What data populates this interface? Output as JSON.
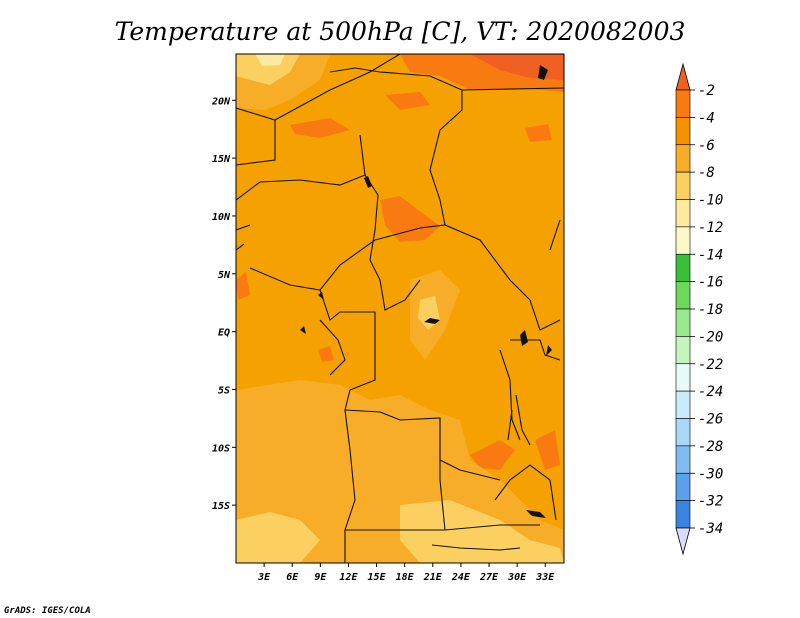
{
  "title": "Temperature at 500hPa [C], VT: 2020082003",
  "credit": "GrADS: IGES/COLA",
  "map": {
    "lon_range": [
      0,
      35
    ],
    "lat_range": [
      -20,
      24
    ],
    "lon_ticks": [
      "3E",
      "6E",
      "9E",
      "12E",
      "15E",
      "18E",
      "21E",
      "24E",
      "27E",
      "30E",
      "33E"
    ],
    "lat_ticks": [
      "20N",
      "15N",
      "10N",
      "5N",
      "EQ",
      "5S",
      "10S",
      "15S"
    ],
    "base_fill": "#f5a200"
  },
  "colorbar": {
    "labels": [
      "-2",
      "-4",
      "-6",
      "-8",
      "-10",
      "-12",
      "-14",
      "-16",
      "-18",
      "-20",
      "-22",
      "-24",
      "-26",
      "-28",
      "-30",
      "-32",
      "-34"
    ],
    "top_color": "#f06020",
    "bottom_color": "#dcdcf8",
    "colors": [
      "#f87a10",
      "#f59200",
      "#f8ad28",
      "#fbd060",
      "#fdeaa0",
      "#fdf8c8",
      "#38c038",
      "#6cd85c",
      "#98ea8c",
      "#c4f5bc",
      "#e6fbf8",
      "#c8ecfa",
      "#a8d8f6",
      "#80bcf0",
      "#5aa0ea",
      "#3884e0",
      "#1c5ccc",
      "#1438a8",
      "#0c1468"
    ]
  }
}
